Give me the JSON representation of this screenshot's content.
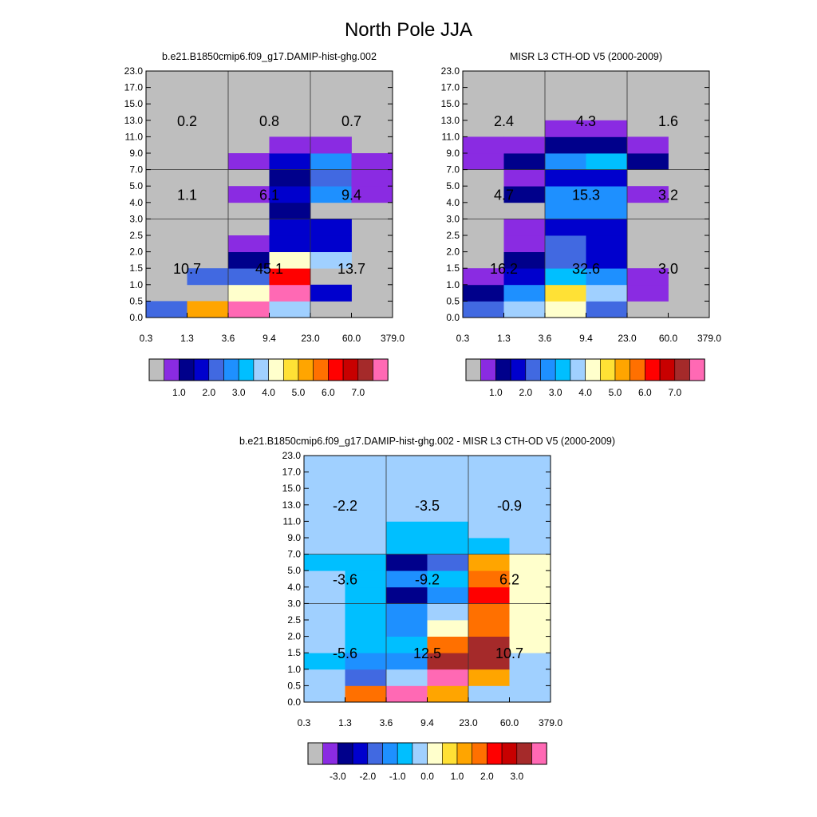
{
  "figure_title": "North Pole JJA",
  "colors": {
    "grey": "#bebebe",
    "palette": [
      "#8a2be2",
      "#00008b",
      "#0000cd",
      "#4169e1",
      "#1e90ff",
      "#00bfff",
      "#a0d0ff",
      "#ffffcc",
      "#ffe135",
      "#ffa500",
      "#ff7000",
      "#ff0000",
      "#c80000",
      "#a52a2a",
      "#ff69b4"
    ],
    "diff_palette": [
      "#8a2be2",
      "#00008b",
      "#0000cd",
      "#4169e1",
      "#1e90ff",
      "#00bfff",
      "#a0d0ff",
      "#ffffcc",
      "#ffe135",
      "#ffa500",
      "#ff7000",
      "#ff0000",
      "#c80000",
      "#a52a2a",
      "#ff69b4"
    ]
  },
  "chart_data": [
    {
      "type": "heatmap",
      "title": "b.e21.B1850cmip6.f09_g17.DAMIP-hist-ghg.002",
      "x_ticks": [
        "0.3",
        "1.3",
        "3.6",
        "9.4",
        "23.0",
        "60.0",
        "379.0"
      ],
      "y_ticks": [
        "0.0",
        "0.5",
        "1.0",
        "1.5",
        "2.0",
        "2.5",
        "3.0",
        "4.0",
        "5.0",
        "7.0",
        "9.0",
        "11.0",
        "13.0",
        "15.0",
        "17.0",
        "23.0"
      ],
      "cell_color_index": [
        [
          3,
          9,
          14,
          6,
          -1,
          -1
        ],
        [
          -1,
          -1,
          7,
          14,
          2,
          -1
        ],
        [
          -1,
          3,
          3,
          11,
          -1,
          -1
        ],
        [
          -1,
          -1,
          1,
          7,
          6,
          -1
        ],
        [
          -1,
          -1,
          0,
          2,
          2,
          -1
        ],
        [
          -1,
          -1,
          -1,
          2,
          2,
          -1
        ],
        [
          -1,
          -1,
          -1,
          1,
          -1,
          -1
        ],
        [
          -1,
          -1,
          0,
          2,
          4,
          0
        ],
        [
          -1,
          -1,
          -1,
          1,
          3,
          0
        ],
        [
          -1,
          -1,
          0,
          2,
          4,
          0
        ],
        [
          -1,
          -1,
          -1,
          0,
          0,
          -1
        ],
        [
          -1,
          -1,
          -1,
          -1,
          -1,
          -1
        ],
        [
          -1,
          -1,
          -1,
          -1,
          -1,
          -1
        ],
        [
          -1,
          -1,
          -1,
          -1,
          -1,
          -1
        ],
        [
          -1,
          -1,
          -1,
          -1,
          -1,
          -1
        ]
      ],
      "cell_labels": [
        [
          "10.7",
          "45.1",
          "13.7"
        ],
        [
          "1.1",
          "6.1",
          "9.4"
        ],
        [
          "0.2",
          "0.8",
          "0.7"
        ]
      ],
      "colorbar_ticks": [
        "1.0",
        "2.0",
        "3.0",
        "4.0",
        "5.0",
        "6.0",
        "7.0"
      ]
    },
    {
      "type": "heatmap",
      "title": "MISR L3 CTH-OD V5 (2000-2009)",
      "x_ticks": [
        "0.3",
        "1.3",
        "3.6",
        "9.4",
        "23.0",
        "60.0",
        "379.0"
      ],
      "y_ticks": [
        "0.0",
        "0.5",
        "1.0",
        "1.5",
        "2.0",
        "2.5",
        "3.0",
        "4.0",
        "5.0",
        "7.0",
        "9.0",
        "11.0",
        "13.0",
        "15.0",
        "17.0",
        "23.0"
      ],
      "cell_color_index": [
        [
          3,
          6,
          7,
          3,
          -1,
          -1
        ],
        [
          1,
          4,
          8,
          6,
          0,
          -1
        ],
        [
          0,
          2,
          5,
          4,
          0,
          -1
        ],
        [
          -1,
          1,
          3,
          2,
          -1,
          -1
        ],
        [
          -1,
          0,
          3,
          2,
          -1,
          -1
        ],
        [
          -1,
          0,
          2,
          2,
          -1,
          -1
        ],
        [
          -1,
          -1,
          4,
          4,
          -1,
          -1
        ],
        [
          -1,
          1,
          4,
          4,
          0,
          -1
        ],
        [
          -1,
          0,
          2,
          2,
          -1,
          -1
        ],
        [
          0,
          1,
          4,
          5,
          1,
          -1
        ],
        [
          0,
          0,
          1,
          1,
          0,
          -1
        ],
        [
          -1,
          -1,
          0,
          0,
          -1,
          -1
        ],
        [
          -1,
          -1,
          -1,
          -1,
          -1,
          -1
        ],
        [
          -1,
          -1,
          -1,
          -1,
          -1,
          -1
        ],
        [
          -1,
          -1,
          -1,
          -1,
          -1,
          -1
        ]
      ],
      "cell_labels": [
        [
          "16.2",
          "32.6",
          "3.0"
        ],
        [
          "4.7",
          "15.3",
          "3.2"
        ],
        [
          "2.4",
          "4.3",
          "1.6"
        ]
      ],
      "colorbar_ticks": [
        "1.0",
        "2.0",
        "3.0",
        "4.0",
        "5.0",
        "6.0",
        "7.0"
      ]
    },
    {
      "type": "heatmap",
      "title": "b.e21.B1850cmip6.f09_g17.DAMIP-hist-ghg.002 - MISR L3 CTH-OD V5 (2000-2009)",
      "x_ticks": [
        "0.3",
        "1.3",
        "3.6",
        "9.4",
        "23.0",
        "60.0",
        "379.0"
      ],
      "y_ticks": [
        "0.0",
        "0.5",
        "1.0",
        "1.5",
        "2.0",
        "2.5",
        "3.0",
        "4.0",
        "5.0",
        "7.0",
        "9.0",
        "11.0",
        "13.0",
        "15.0",
        "17.0",
        "23.0"
      ],
      "cell_color_index": [
        [
          6,
          10,
          14,
          9,
          6,
          6
        ],
        [
          6,
          3,
          6,
          14,
          9,
          6
        ],
        [
          5,
          4,
          4,
          13,
          13,
          6
        ],
        [
          6,
          5,
          5,
          10,
          13,
          7
        ],
        [
          6,
          5,
          4,
          7,
          10,
          7
        ],
        [
          6,
          5,
          4,
          6,
          10,
          7
        ],
        [
          6,
          5,
          1,
          4,
          11,
          7
        ],
        [
          6,
          5,
          4,
          5,
          10,
          7
        ],
        [
          5,
          5,
          1,
          3,
          9,
          7
        ],
        [
          6,
          6,
          5,
          5,
          5,
          6
        ],
        [
          6,
          6,
          5,
          5,
          6,
          6
        ],
        [
          6,
          6,
          6,
          6,
          6,
          6
        ],
        [
          6,
          6,
          6,
          6,
          6,
          6
        ],
        [
          6,
          6,
          6,
          6,
          6,
          6
        ],
        [
          6,
          6,
          6,
          6,
          6,
          6
        ]
      ],
      "cell_labels": [
        [
          "-5.6",
          "12.5",
          "10.7"
        ],
        [
          "-3.6",
          "-9.2",
          "6.2"
        ],
        [
          "-2.2",
          "-3.5",
          "-0.9"
        ]
      ],
      "colorbar_ticks": [
        "-3.0",
        "-2.0",
        "-1.0",
        "0.0",
        "1.0",
        "2.0",
        "3.0"
      ]
    }
  ]
}
